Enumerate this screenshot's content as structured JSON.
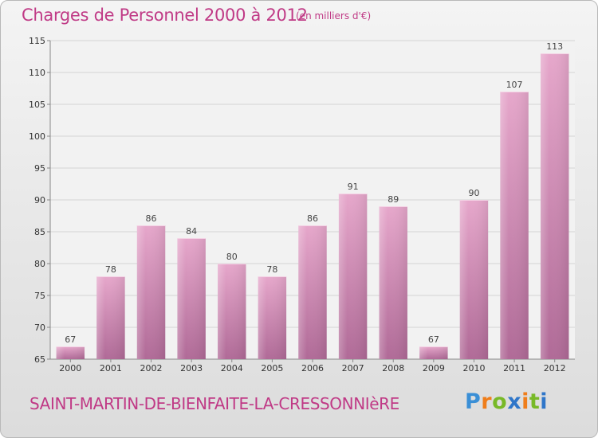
{
  "header": {
    "title": "Charges de Personnel 2000 à 2012",
    "subtitle": "(en milliers d'€)"
  },
  "footer": {
    "commune": "SAINT-MARTIN-DE-BIENFAITE-LA-CRESSONNIèRE",
    "logo_letters": [
      "P",
      "r",
      "o",
      "x",
      "i",
      "t",
      "i"
    ],
    "logo_colors": [
      "#3a8fd6",
      "#ef7d1a",
      "#78b928",
      "#2f76c9",
      "#ef7d1a",
      "#78b928",
      "#2f76c9"
    ]
  },
  "chart_data": {
    "type": "bar",
    "title": "Charges de Personnel 2000 à 2012",
    "subtitle": "(en milliers d'€)",
    "categories": [
      "2000",
      "2001",
      "2002",
      "2003",
      "2004",
      "2005",
      "2006",
      "2007",
      "2008",
      "2009",
      "2010",
      "2011",
      "2012"
    ],
    "values": [
      67,
      78,
      86,
      84,
      80,
      78,
      86,
      91,
      89,
      67,
      90,
      107,
      113
    ],
    "ylim": [
      65,
      115
    ],
    "yticks": [
      65,
      70,
      75,
      80,
      85,
      90,
      95,
      100,
      105,
      110,
      115
    ],
    "grid": true,
    "bar_color": "#d98ab8"
  }
}
